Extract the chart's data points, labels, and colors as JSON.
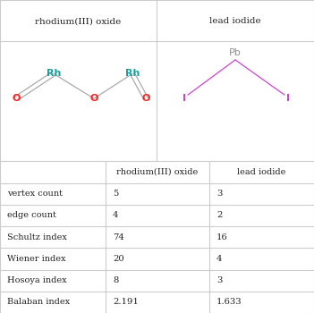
{
  "col_headers": [
    "",
    "rhodium(III) oxide",
    "lead iodide"
  ],
  "row_labels": [
    "vertex count",
    "edge count",
    "Schultz index",
    "Wiener index",
    "Hosoya index",
    "Balaban index"
  ],
  "col1_values": [
    "5",
    "4",
    "74",
    "20",
    "8",
    "2.191"
  ],
  "col2_values": [
    "3",
    "2",
    "16",
    "4",
    "3",
    "1.633"
  ],
  "molecule1_name": "rhodium(III) oxide",
  "molecule2_name": "lead iodide",
  "bg_color": "#ffffff",
  "table_line_color": "#cccccc",
  "header_text_color": "#222222",
  "cell_text_color": "#222222",
  "rh_color": "#19a0a0",
  "o_color": "#ff2222",
  "pb_color": "#909090",
  "i_color": "#cc44cc",
  "bond_gray": "#aaaaaa"
}
